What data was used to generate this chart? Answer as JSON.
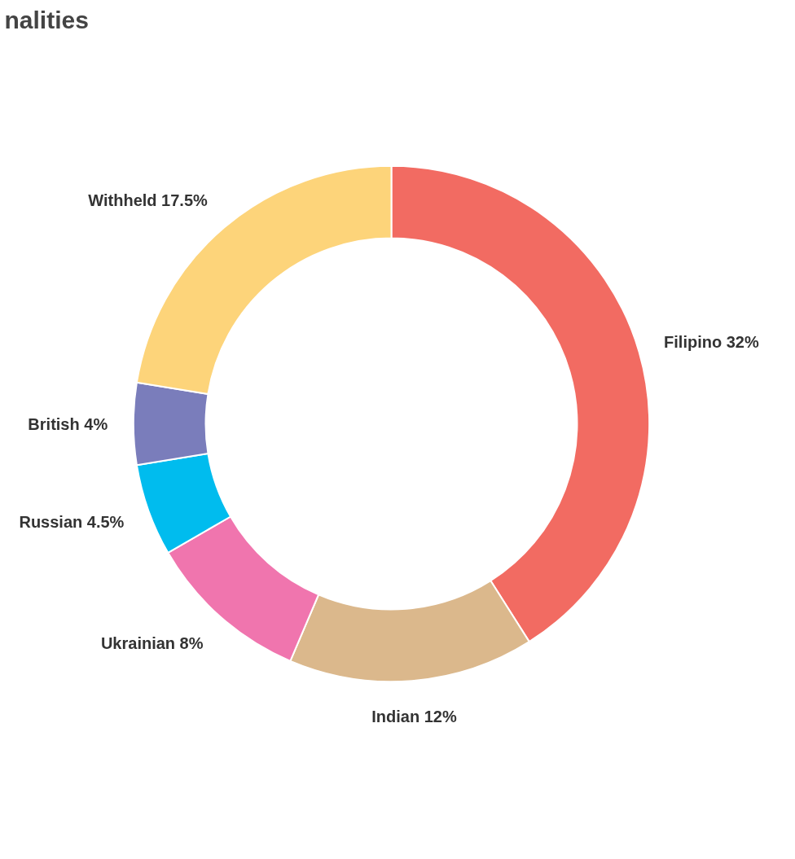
{
  "chart_data": {
    "type": "donut",
    "title": "nalities",
    "categories": [
      "Filipino",
      "Indian",
      "Ukrainian",
      "Russian",
      "British",
      "Withheld"
    ],
    "values": [
      32,
      12,
      8,
      4.5,
      4,
      17.5
    ],
    "value_labels": [
      "32%",
      "12%",
      "8%",
      "4.5%",
      "4%",
      "17.5%"
    ],
    "colors": [
      "#f26b62",
      "#dbb88c",
      "#f075ae",
      "#00bcee",
      "#7a7dbb",
      "#fdd47a"
    ]
  }
}
